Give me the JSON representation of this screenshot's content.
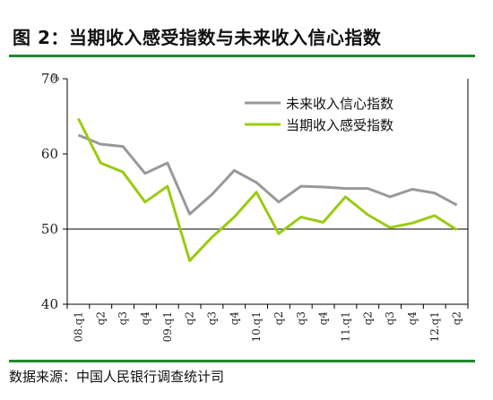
{
  "header": {
    "title": "图 2：当期收入感受指数与未来收入信心指数"
  },
  "footer": {
    "source": "数据来源：中国人民银行调查统计司"
  },
  "colors": {
    "rule": "#1f8a2c",
    "future_series": "#999999",
    "current_series": "#99cc11",
    "axis": "#000000"
  },
  "chart_data": {
    "type": "line",
    "title": "",
    "xlabel": "",
    "ylabel": "",
    "y_unit": "%",
    "ylim": [
      40,
      70
    ],
    "yticks": [
      40,
      50,
      60,
      70
    ],
    "grid": false,
    "reference_line": 50,
    "legend_position": "top-right",
    "categories": [
      "08.q1",
      "q2",
      "q3",
      "q4",
      "09.q1",
      "q2",
      "q3",
      "q4",
      "10.q1",
      "q2",
      "q3",
      "q4",
      "11.q1",
      "q2",
      "q3",
      "q4",
      "12.q1",
      "q2"
    ],
    "series": [
      {
        "name": "未来收入信心指数",
        "color": "#999999",
        "values": [
          62.5,
          61.3,
          61.0,
          57.4,
          58.8,
          52.0,
          54.6,
          57.8,
          56.2,
          53.6,
          55.7,
          55.6,
          55.4,
          55.4,
          54.3,
          55.3,
          54.8,
          53.2
        ]
      },
      {
        "name": "当期收入感受指数",
        "color": "#99cc11",
        "values": [
          64.7,
          58.8,
          57.6,
          53.6,
          55.7,
          45.8,
          48.9,
          51.6,
          54.9,
          49.4,
          51.6,
          50.9,
          54.3,
          51.9,
          50.2,
          50.8,
          51.8,
          49.9
        ]
      }
    ]
  }
}
